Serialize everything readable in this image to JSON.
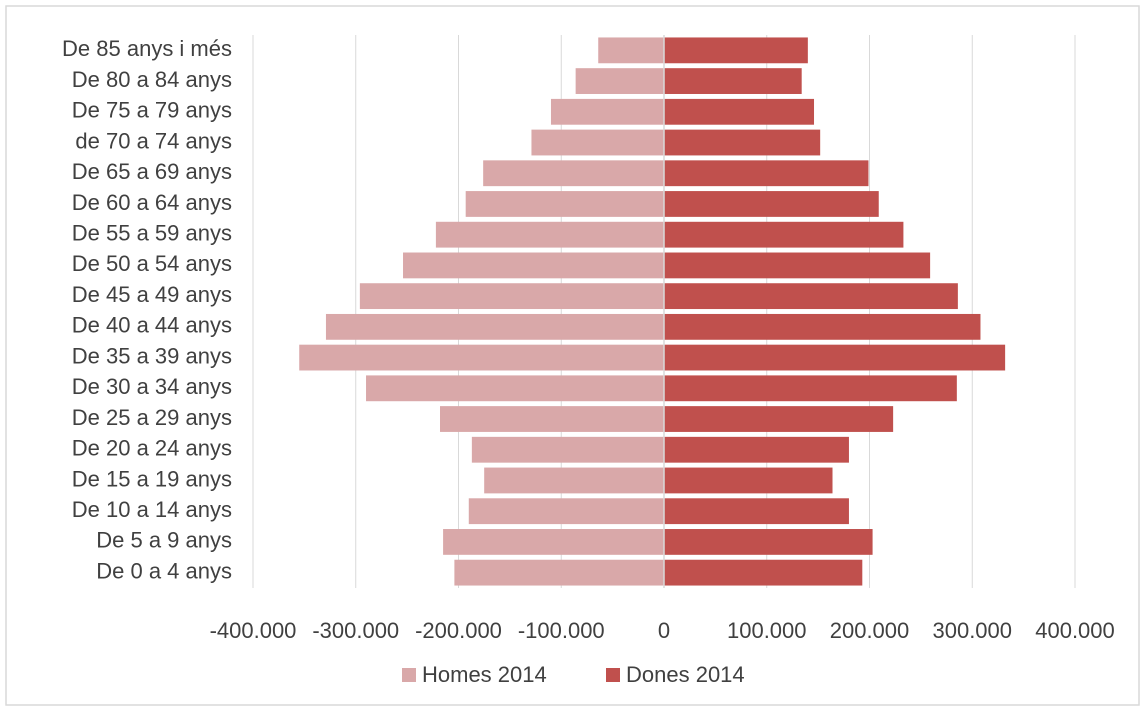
{
  "chart_data": {
    "type": "bar",
    "orientation": "horizontal",
    "categories": [
      "De 85 anys i més",
      "De 80 a 84 anys",
      "De 75 a 79 anys",
      "de 70 a 74 anys",
      "De 65 a 69 anys",
      "De 60 a 64 anys",
      "De 55 a 59 anys",
      "De 50 a 54 anys",
      "De 45 a 49 anys",
      "De 40 a 44 anys",
      "De 35 a 39 anys",
      "De 30 a 34 anys",
      "De 25 a 29 anys",
      "De 20 a 24 anys",
      "De 15 a 19 anys",
      "De 10 a 14 anys",
      "De 5 a 9 anys",
      "De 0 a 4 anys"
    ],
    "series": [
      {
        "name": "Homes 2014",
        "color": "#d9a8a9",
        "values": [
          -64000,
          -86000,
          -110000,
          -129000,
          -176000,
          -193000,
          -222000,
          -254000,
          -296000,
          -329000,
          -355000,
          -290000,
          -218000,
          -187000,
          -175000,
          -190000,
          -215000,
          -204000
        ]
      },
      {
        "name": "Dones 2014",
        "color": "#c0504d",
        "values": [
          140000,
          134000,
          146000,
          152000,
          199000,
          209000,
          233000,
          259000,
          286000,
          308000,
          332000,
          285000,
          223000,
          180000,
          164000,
          180000,
          203000,
          193000
        ]
      }
    ],
    "xlim": [
      -400000,
      400000
    ],
    "xticks": [
      {
        "value": -400000,
        "label": "-400.000"
      },
      {
        "value": -300000,
        "label": "-300.000"
      },
      {
        "value": -200000,
        "label": "-200.000"
      },
      {
        "value": -100000,
        "label": "-100.000"
      },
      0,
      {
        "value": 100000,
        "label": "100.000"
      },
      {
        "value": 200000,
        "label": "200.000"
      },
      {
        "value": 300000,
        "label": "300.000"
      },
      {
        "value": 400000,
        "label": "400.000"
      }
    ],
    "grid": true,
    "legend": "bottom",
    "stacked": true
  }
}
